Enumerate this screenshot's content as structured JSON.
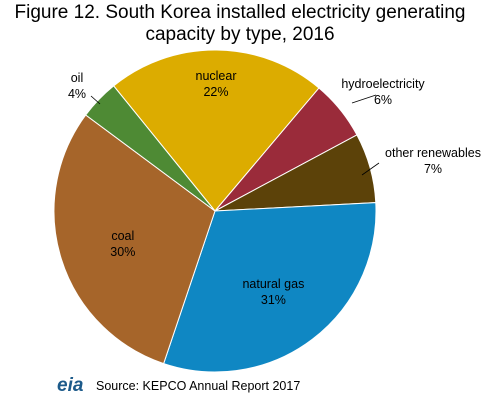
{
  "chart_data": {
    "type": "pie",
    "title": "Figure 12. South Korea installed electricity generating capacity by type, 2016",
    "categories": [
      "nuclear",
      "hydroelectricity",
      "other renewables",
      "natural gas",
      "coal",
      "oil"
    ],
    "values": [
      22,
      6,
      7,
      31,
      30,
      4
    ],
    "value_labels": [
      "22%",
      "6%",
      "7%",
      "31%",
      "30%",
      "4%"
    ],
    "colors": [
      "#dcac00",
      "#9a2b3a",
      "#5c4209",
      "#0f87c3",
      "#a6652a",
      "#4e8a34"
    ],
    "source": "Source: KEPCO Annual Report 2017",
    "logo": "eia"
  }
}
